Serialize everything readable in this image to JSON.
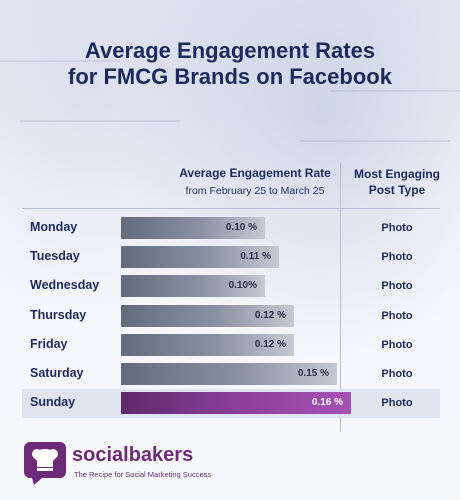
{
  "title_line1": "Average Engagement Rates",
  "title_line2": "for FMCG Brands on Facebook",
  "header_rate": "Average Engagement Rate",
  "header_rate_sub": "from February 25 to March 25",
  "header_post_line1": "Most Engaging",
  "header_post_line2": "Post Type",
  "brand_name": "socialbakers",
  "brand_tagline": "The Recipe for Social Marketing Success",
  "colors": {
    "title": "#1f2a5c",
    "bar": "#7a8192",
    "highlight": "#8a3f98"
  },
  "chart_data": {
    "type": "bar",
    "orientation": "horizontal",
    "title": "Average Engagement Rates for FMCG Brands on Facebook",
    "xlabel": "Average Engagement Rate from February 25 to March 25",
    "categories": [
      "Monday",
      "Tuesday",
      "Wednesday",
      "Thursday",
      "Friday",
      "Saturday",
      "Sunday"
    ],
    "values": [
      0.1,
      0.11,
      0.1,
      0.12,
      0.12,
      0.15,
      0.16
    ],
    "value_labels": [
      "0.10 %",
      "0.11 %",
      "0.10%",
      "0.12 %",
      "0.12 %",
      "0.15 %",
      "0.16 %"
    ],
    "post_types": [
      "Photo",
      "Photo",
      "Photo",
      "Photo",
      "Photo",
      "Photo",
      "Photo"
    ],
    "highlight": "Sunday"
  }
}
